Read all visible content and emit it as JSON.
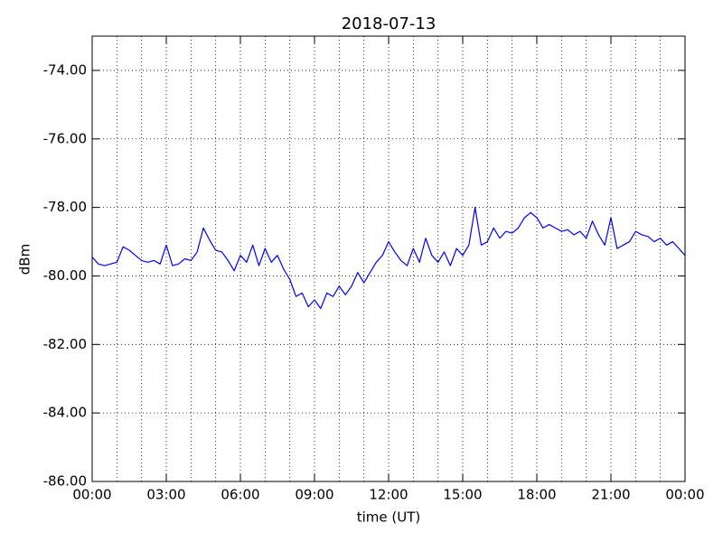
{
  "chart_data": {
    "type": "line",
    "title": "2018-07-13",
    "xlabel": "time (UT)",
    "ylabel": "dBm",
    "xlim": [
      0,
      24
    ],
    "xticks": [
      {
        "value": 0,
        "label": "00:00"
      },
      {
        "value": 3,
        "label": "03:00"
      },
      {
        "value": 6,
        "label": "06:00"
      },
      {
        "value": 9,
        "label": "09:00"
      },
      {
        "value": 12,
        "label": "12:00"
      },
      {
        "value": 15,
        "label": "15:00"
      },
      {
        "value": 18,
        "label": "18:00"
      },
      {
        "value": 21,
        "label": "21:00"
      },
      {
        "value": 24,
        "label": "00:00"
      }
    ],
    "minor_divisions": 3,
    "ylim": [
      -86,
      -73
    ],
    "yticks": [
      {
        "value": -86,
        "label": "-86.00"
      },
      {
        "value": -84,
        "label": "-84.00"
      },
      {
        "value": -82,
        "label": "-82.00"
      },
      {
        "value": -80,
        "label": "-80.00"
      },
      {
        "value": -78,
        "label": "-78.00"
      },
      {
        "value": -76,
        "label": "-76.00"
      },
      {
        "value": -74,
        "label": "-74.00"
      }
    ],
    "grid": true,
    "x": [
      0,
      0.25,
      0.5,
      0.75,
      1,
      1.25,
      1.5,
      1.75,
      2,
      2.25,
      2.5,
      2.75,
      3,
      3.25,
      3.5,
      3.75,
      4,
      4.25,
      4.5,
      4.75,
      5,
      5.25,
      5.5,
      5.75,
      6,
      6.25,
      6.5,
      6.75,
      7,
      7.25,
      7.5,
      7.75,
      8,
      8.25,
      8.5,
      8.75,
      9,
      9.25,
      9.5,
      9.75,
      10,
      10.25,
      10.5,
      10.75,
      11,
      11.25,
      11.5,
      11.75,
      12,
      12.25,
      12.5,
      12.75,
      13,
      13.25,
      13.5,
      13.75,
      14,
      14.25,
      14.5,
      14.75,
      15,
      15.25,
      15.5,
      15.75,
      16,
      16.25,
      16.5,
      16.75,
      17,
      17.25,
      17.5,
      17.75,
      18,
      18.25,
      18.5,
      18.75,
      19,
      19.25,
      19.5,
      19.75,
      20,
      20.25,
      20.5,
      20.75,
      21,
      21.25,
      21.5,
      21.75,
      22,
      22.25,
      22.5,
      22.75,
      23,
      23.25,
      23.5,
      23.75,
      24
    ],
    "series": [
      {
        "color": "#0000ff",
        "values": [
          -79.45,
          -79.65,
          -79.7,
          -79.65,
          -79.6,
          -79.15,
          -79.25,
          -79.4,
          -79.55,
          -79.6,
          -79.55,
          -79.65,
          -79.1,
          -79.7,
          -79.65,
          -79.5,
          -79.55,
          -79.3,
          -78.6,
          -78.95,
          -79.25,
          -79.3,
          -79.55,
          -79.85,
          -79.4,
          -79.6,
          -79.1,
          -79.7,
          -79.2,
          -79.6,
          -79.4,
          -79.8,
          -80.1,
          -80.6,
          -80.5,
          -80.9,
          -80.7,
          -80.95,
          -80.5,
          -80.6,
          -80.3,
          -80.55,
          -80.3,
          -79.9,
          -80.2,
          -79.9,
          -79.6,
          -79.4,
          -79.0,
          -79.3,
          -79.55,
          -79.7,
          -79.2,
          -79.6,
          -78.9,
          -79.4,
          -79.6,
          -79.3,
          -79.7,
          -79.2,
          -79.4,
          -79.1,
          -78.0,
          -79.1,
          -79.0,
          -78.6,
          -78.9,
          -78.7,
          -78.75,
          -78.6,
          -78.3,
          -78.15,
          -78.3,
          -78.6,
          -78.5,
          -78.6,
          -78.7,
          -78.65,
          -78.8,
          -78.7,
          -78.9,
          -78.4,
          -78.8,
          -79.1,
          -78.3,
          -79.2,
          -79.1,
          -79.0,
          -78.7,
          -78.8,
          -78.85,
          -79.0,
          -78.9,
          -79.1,
          -79.0,
          -79.2,
          -79.4
        ]
      }
    ]
  }
}
